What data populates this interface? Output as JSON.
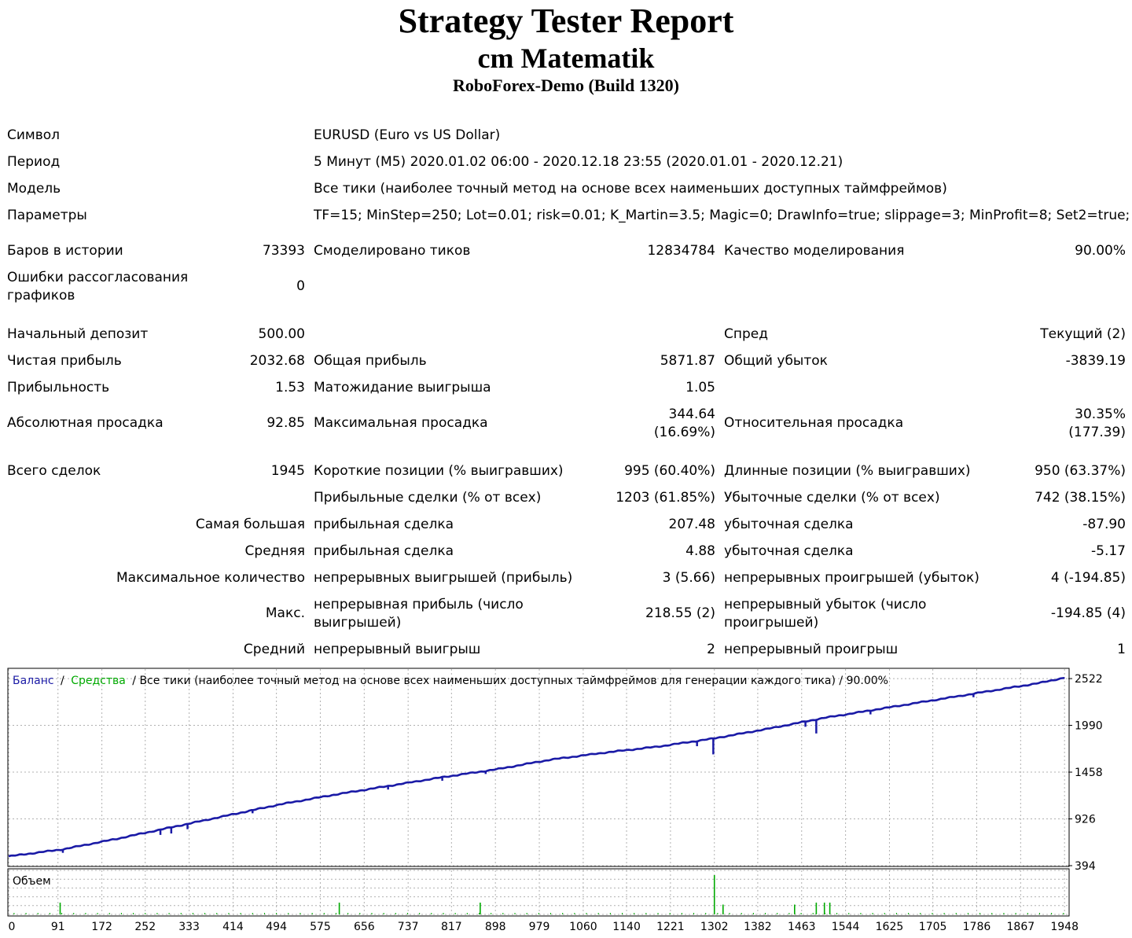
{
  "report": {
    "title": "Strategy Tester Report",
    "expert": "cm Matematik",
    "server": "RoboForex-Demo (Build 1320)"
  },
  "info": {
    "symbol_label": "Символ",
    "symbol_value": "EURUSD (Euro vs US Dollar)",
    "period_label": "Период",
    "period_value": "5 Минут (M5) 2020.01.02 06:00 - 2020.12.18 23:55 (2020.01.01 - 2020.12.21)",
    "model_label": "Модель",
    "model_value": "Все тики (наиболее точный метод на основе всех наименьших доступных таймфреймов)",
    "params_label": "Параметры",
    "params_value": "TF=15; MinStep=250; Lot=0.01; risk=0.01; K_Martin=3.5; Magic=0; DrawInfo=true; slippage=3; MinProfit=8; Set2=true;"
  },
  "modeling": {
    "bars_label": "Баров в истории",
    "bars_value": "73393",
    "ticks_label": "Смоделировано тиков",
    "ticks_value": "12834784",
    "quality_label": "Качество моделирования",
    "quality_value": "90.00%",
    "mismatch_label": "Ошибки рассогласования графиков",
    "mismatch_value": "0"
  },
  "results": {
    "deposit_label": "Начальный депозит",
    "deposit_value": "500.00",
    "spread_label": "Спред",
    "spread_value": "Текущий (2)",
    "net_label": "Чистая прибыль",
    "net_value": "2032.68",
    "gross_profit_label": "Общая прибыль",
    "gross_profit_value": "5871.87",
    "gross_loss_label": "Общий убыток",
    "gross_loss_value": "-3839.19",
    "pf_label": "Прибыльность",
    "pf_value": "1.53",
    "payoff_label": "Матожидание выигрыша",
    "payoff_value": "1.05",
    "abs_dd_label": "Абсолютная просадка",
    "abs_dd_value": "92.85",
    "max_dd_label": "Максимальная просадка",
    "max_dd_value1": "344.64",
    "max_dd_value2": "(16.69%)",
    "rel_dd_label": "Относительная просадка",
    "rel_dd_value1": "30.35%",
    "rel_dd_value2": "(177.39)"
  },
  "trades": {
    "total_label": "Всего сделок",
    "total_value": "1945",
    "short_label": "Короткие позиции (% выигравших)",
    "short_value": "995 (60.40%)",
    "long_label": "Длинные позиции (% выигравших)",
    "long_value": "950 (63.37%)",
    "profit_trades_label": "Прибыльные сделки (% от всех)",
    "profit_trades_value": "1203 (61.85%)",
    "loss_trades_label": "Убыточные сделки (% от всех)",
    "loss_trades_value": "742 (38.15%)",
    "largest_label": "Самая большая",
    "largest_profit_label": "прибыльная сделка",
    "largest_profit_value": "207.48",
    "largest_loss_label": "убыточная сделка",
    "largest_loss_value": "-87.90",
    "average_label": "Средняя",
    "average_profit_label": "прибыльная сделка",
    "average_profit_value": "4.88",
    "average_loss_label": "убыточная сделка",
    "average_loss_value": "-5.17",
    "max_count_label": "Максимальное количество",
    "max_wins_label": "непрерывных выигрышей (прибыль)",
    "max_wins_value": "3 (5.66)",
    "max_losses_label": "непрерывных проигрышей (убыток)",
    "max_losses_value": "4 (-194.85)",
    "max_label": "Макс.",
    "max_profit_label": "непрерывная прибыль (число выигрышей)",
    "max_profit_value": "218.55 (2)",
    "max_loss_label": "непрерывный убыток (число проигрышей)",
    "max_loss_value": "-194.85 (4)",
    "avg_label": "Средний",
    "avg_wins_label": "непрерывный выигрыш",
    "avg_wins_value": "2",
    "avg_losses_label": "непрерывный проигрыш",
    "avg_losses_value": "1"
  },
  "chart_data": {
    "type": "line",
    "legend": {
      "balance": "Баланс",
      "sep1": "/",
      "equity": "Средства",
      "rest": "/ Все тики (наиболее точный метод на основе всех наименьших доступных таймфреймов для генерации каждого тика) / 90.00%"
    },
    "volume_label": "Объем",
    "colors": {
      "balance": "#1a1aa6",
      "equity": "#00aa00",
      "volume": "#00aa00",
      "grid": "#b0b0b0"
    },
    "xlim": [
      0,
      1955
    ],
    "ylim": [
      394,
      2630
    ],
    "yticks": [
      2522,
      1990,
      1458,
      926,
      394
    ],
    "xticks": [
      0,
      91,
      172,
      252,
      333,
      414,
      494,
      575,
      656,
      737,
      817,
      898,
      979,
      1060,
      1140,
      1221,
      1302,
      1382,
      1463,
      1544,
      1625,
      1705,
      1786,
      1867,
      1948
    ],
    "balance_series": {
      "x": [
        0,
        100,
        200,
        300,
        400,
        500,
        600,
        700,
        800,
        900,
        1000,
        1100,
        1200,
        1300,
        1400,
        1500,
        1600,
        1700,
        1800,
        1900,
        1948
      ],
      "y": [
        500,
        580,
        700,
        830,
        960,
        1090,
        1200,
        1300,
        1400,
        1490,
        1600,
        1680,
        1750,
        1840,
        1950,
        2070,
        2170,
        2270,
        2370,
        2470,
        2532
      ]
    },
    "drawdowns": {
      "x": [
        100,
        280,
        300,
        330,
        450,
        700,
        800,
        880,
        1270,
        1300,
        1470,
        1490,
        1590,
        1780
      ],
      "depth": [
        40,
        60,
        70,
        60,
        35,
        40,
        40,
        35,
        60,
        180,
        60,
        160,
        45,
        40
      ]
    },
    "volume": {
      "x": [
        95,
        610,
        870,
        1302,
        1318,
        1450,
        1490,
        1505,
        1515
      ],
      "v": [
        0.3,
        0.3,
        0.3,
        1.0,
        0.25,
        0.25,
        0.3,
        0.3,
        0.3
      ]
    }
  }
}
